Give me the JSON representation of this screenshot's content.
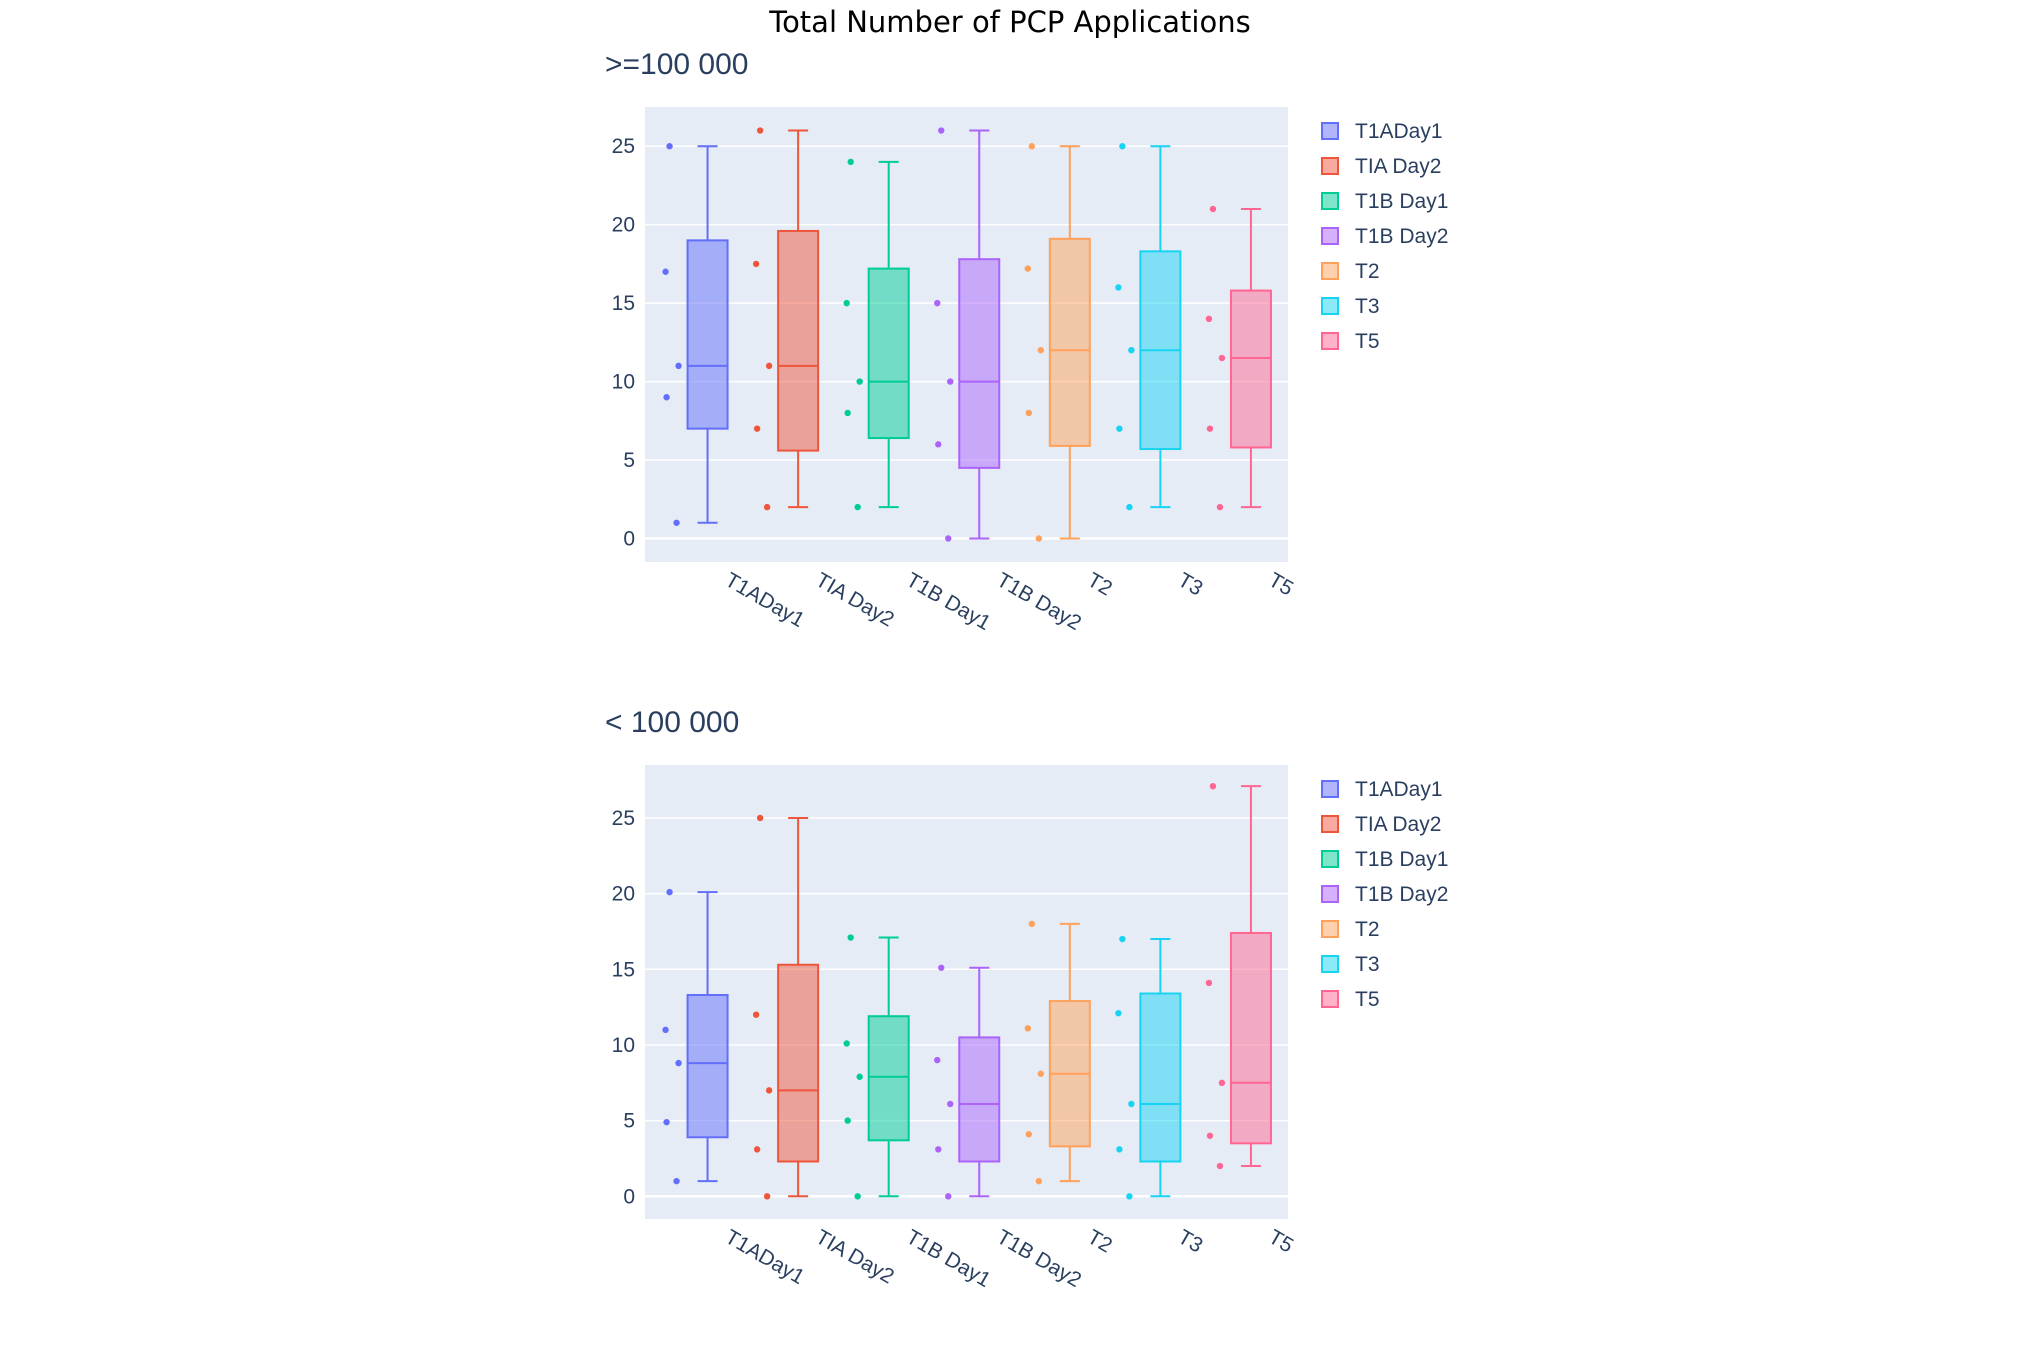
{
  "title": "Total Number of PCP Applications",
  "colors": {
    "plot_bg": "#E5ECF6",
    "grid": "#ffffff",
    "text": "#2a3f5f",
    "series": [
      "#636EFA",
      "#EF553B",
      "#00CC96",
      "#AB63FA",
      "#FFA15A",
      "#19D3F3",
      "#FF6692"
    ]
  },
  "chart_data": [
    {
      "type": "box",
      "subtitle": ">=100 000",
      "categories": [
        "T1ADay1",
        "TIA Day2",
        "T1B Day1",
        "T1B Day2",
        "T2",
        "T3",
        "T5"
      ],
      "yticks": [
        0,
        5,
        10,
        15,
        20,
        25
      ],
      "ylim": [
        -1.5,
        27.5
      ],
      "grid": true,
      "legend_position": "right",
      "series": [
        {
          "name": "T1ADay1",
          "q1": 7,
          "median": 11,
          "q3": 19,
          "lower_whisker": 1,
          "upper_whisker": 25,
          "points": [
            25,
            17,
            11,
            9,
            1
          ]
        },
        {
          "name": "TIA Day2",
          "q1": 5.6,
          "median": 11,
          "q3": 19.6,
          "lower_whisker": 2,
          "upper_whisker": 26,
          "points": [
            26,
            17.5,
            11,
            7,
            2
          ]
        },
        {
          "name": "T1B Day1",
          "q1": 6.4,
          "median": 10,
          "q3": 17.2,
          "lower_whisker": 2,
          "upper_whisker": 24,
          "points": [
            24,
            15,
            10,
            8,
            2
          ]
        },
        {
          "name": "T1B Day2",
          "q1": 4.5,
          "median": 10,
          "q3": 17.8,
          "lower_whisker": 0,
          "upper_whisker": 26,
          "points": [
            26,
            15,
            10,
            6,
            0
          ]
        },
        {
          "name": "T2",
          "q1": 5.9,
          "median": 12,
          "q3": 19.1,
          "lower_whisker": 0,
          "upper_whisker": 25,
          "points": [
            25,
            17.2,
            12,
            8,
            0
          ]
        },
        {
          "name": "T3",
          "q1": 5.7,
          "median": 12,
          "q3": 18.3,
          "lower_whisker": 2,
          "upper_whisker": 25,
          "points": [
            25,
            16,
            12,
            7,
            2
          ]
        },
        {
          "name": "T5",
          "q1": 5.8,
          "median": 11.5,
          "q3": 15.8,
          "lower_whisker": 2,
          "upper_whisker": 21,
          "points": [
            21,
            14,
            11.5,
            7,
            2
          ]
        }
      ]
    },
    {
      "type": "box",
      "subtitle": "< 100 000",
      "categories": [
        "T1ADay1",
        "TIA Day2",
        "T1B Day1",
        "T1B Day2",
        "T2",
        "T3",
        "T5"
      ],
      "yticks": [
        0,
        5,
        10,
        15,
        20,
        25
      ],
      "ylim": [
        -1.5,
        28.5
      ],
      "grid": true,
      "legend_position": "right",
      "series": [
        {
          "name": "T1ADay1",
          "q1": 3.9,
          "median": 8.8,
          "q3": 13.3,
          "lower_whisker": 1,
          "upper_whisker": 20.1,
          "points": [
            20.1,
            11,
            8.8,
            4.9,
            1
          ]
        },
        {
          "name": "TIA Day2",
          "q1": 2.3,
          "median": 7,
          "q3": 15.3,
          "lower_whisker": 0,
          "upper_whisker": 25,
          "points": [
            25,
            12,
            7,
            3.1,
            0
          ]
        },
        {
          "name": "T1B Day1",
          "q1": 3.7,
          "median": 7.9,
          "q3": 11.9,
          "lower_whisker": 0,
          "upper_whisker": 17.1,
          "points": [
            17.1,
            10.1,
            7.9,
            5,
            0
          ]
        },
        {
          "name": "T1B Day2",
          "q1": 2.3,
          "median": 6.1,
          "q3": 10.5,
          "lower_whisker": 0,
          "upper_whisker": 15.1,
          "points": [
            15.1,
            9,
            6.1,
            3.1,
            0
          ]
        },
        {
          "name": "T2",
          "q1": 3.3,
          "median": 8.1,
          "q3": 12.9,
          "lower_whisker": 1,
          "upper_whisker": 18,
          "points": [
            18,
            11.1,
            8.1,
            4.1,
            1
          ]
        },
        {
          "name": "T3",
          "q1": 2.3,
          "median": 6.1,
          "q3": 13.4,
          "lower_whisker": 0,
          "upper_whisker": 17,
          "points": [
            17,
            12.1,
            6.1,
            3.1,
            0
          ]
        },
        {
          "name": "T5",
          "q1": 3.5,
          "median": 7.5,
          "q3": 17.4,
          "lower_whisker": 2,
          "upper_whisker": 27.1,
          "points": [
            27.1,
            14.1,
            7.5,
            4,
            2
          ]
        }
      ]
    }
  ]
}
